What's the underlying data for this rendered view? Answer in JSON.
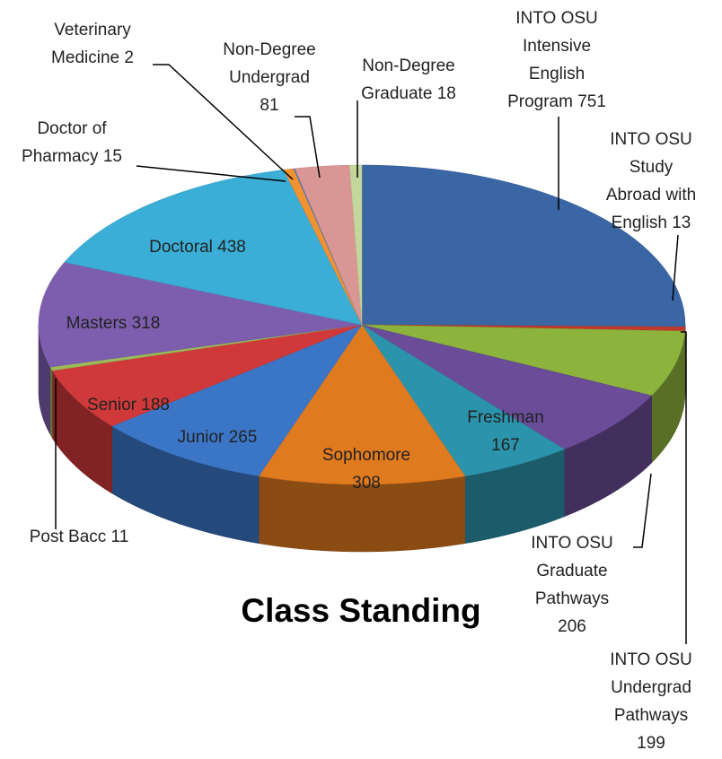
{
  "chart_data": {
    "type": "pie3d",
    "title": "Class Standing",
    "categories": [
      "INTO OSU Intensive English Program",
      "INTO OSU Study Abroad with English",
      "INTO OSU Undergrad Pathways",
      "INTO OSU Graduate Pathways",
      "Freshman",
      "Sophomore",
      "Junior",
      "Senior",
      "Post Bacc",
      "Masters",
      "Doctoral",
      "Doctor of Pharmacy",
      "Veterinary Medicine",
      "Non-Degree Undergrad",
      "Non-Degree Graduate"
    ],
    "values": [
      751,
      13,
      199,
      206,
      167,
      308,
      265,
      188,
      11,
      318,
      438,
      15,
      2,
      81,
      18
    ],
    "colors": [
      "#3a66a3",
      "#c0392b",
      "#8cb43c",
      "#6a4c98",
      "#2b93ab",
      "#e07a1f",
      "#3b76c6",
      "#d0393a",
      "#9bbb59",
      "#7d5eae",
      "#3aaed6",
      "#f39230",
      "#4a7ebf",
      "#d99694",
      "#c3d69b"
    ]
  }
}
